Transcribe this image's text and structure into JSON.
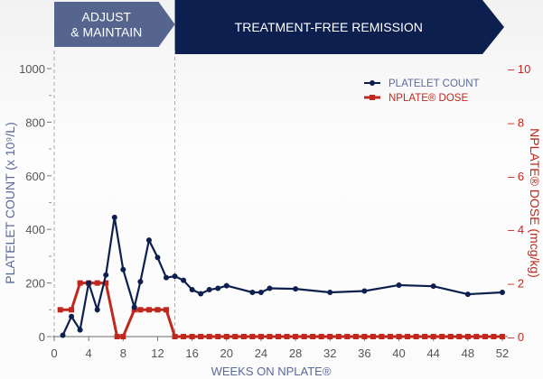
{
  "chart_data": {
    "type": "line",
    "phases": [
      {
        "label_lines": [
          "ADJUST",
          "& MAINTAIN"
        ],
        "start_week": 0,
        "end_week": 14,
        "color": "#56658e"
      },
      {
        "label_lines": [
          "TREATMENT-FREE REMISSION"
        ],
        "start_week": 14,
        "end_week": 52,
        "color": "#0d1f4f"
      }
    ],
    "xlabel": "WEEKS ON NPLATE®",
    "ylabel": "PLATELET COUNT (x 10⁹/L)",
    "y2label": "NPLATE® DOSE (mcg/kg)",
    "xlim": [
      0,
      52
    ],
    "ylim": [
      0,
      1000
    ],
    "y2lim": [
      0,
      10
    ],
    "xticks": [
      0,
      4,
      8,
      12,
      16,
      20,
      24,
      28,
      32,
      36,
      40,
      44,
      48,
      52
    ],
    "yticks": [
      0,
      200,
      400,
      600,
      800,
      1000
    ],
    "y2ticks": [
      0,
      2,
      4,
      6,
      8,
      10
    ],
    "grid": false,
    "legend_placement": "top-right",
    "series": [
      {
        "name": "PLATELET COUNT",
        "axis": "left",
        "color": "#0d1f4f",
        "marker": "circle",
        "x": [
          1,
          2,
          3,
          4,
          5,
          6,
          7,
          8,
          9.3,
          10,
          11,
          12,
          13,
          14,
          15,
          16,
          17,
          18,
          19,
          20,
          23,
          24,
          25,
          28,
          32,
          36,
          40,
          44,
          48,
          52
        ],
        "y": [
          5,
          75,
          25,
          200,
          100,
          230,
          445,
          250,
          110,
          205,
          360,
          295,
          220,
          225,
          210,
          175,
          160,
          175,
          180,
          190,
          165,
          165,
          180,
          178,
          165,
          170,
          192,
          188,
          158,
          165
        ]
      },
      {
        "name": "NPLATE® DOSE",
        "axis": "right",
        "color": "#c0271d",
        "marker": "square",
        "x": [
          0.7,
          2,
          3,
          4,
          5,
          6,
          7.3,
          8,
          9.3,
          10,
          11,
          12,
          13,
          14,
          15,
          16,
          17,
          18,
          19,
          20,
          21,
          22,
          23,
          24,
          25,
          26,
          27,
          28,
          29,
          30,
          31,
          32,
          33,
          34,
          35,
          36,
          37,
          38,
          39,
          40,
          41,
          42,
          43,
          44,
          45,
          46,
          47,
          48,
          49,
          50,
          51,
          52
        ],
        "y": [
          1,
          1,
          2,
          2,
          2,
          2,
          0,
          0,
          1,
          1,
          1,
          1,
          1,
          0,
          0,
          0,
          0,
          0,
          0,
          0,
          0,
          0,
          0,
          0,
          0,
          0,
          0,
          0,
          0,
          0,
          0,
          0,
          0,
          0,
          0,
          0,
          0,
          0,
          0,
          0,
          0,
          0,
          0,
          0,
          0,
          0,
          0,
          0,
          0,
          0,
          0,
          0
        ]
      }
    ]
  }
}
